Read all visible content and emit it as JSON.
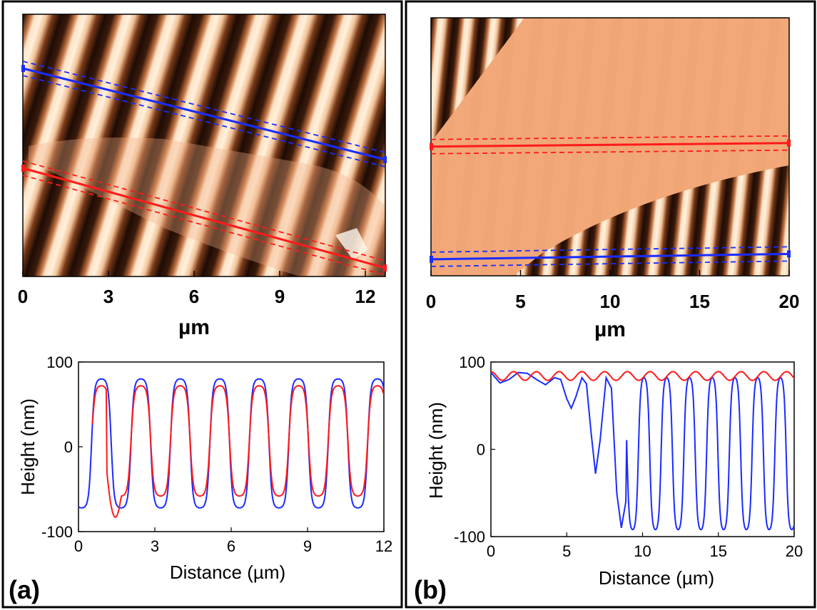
{
  "figure": {
    "panels": [
      {
        "label": "(a)"
      },
      {
        "label": "(b)"
      }
    ]
  },
  "colors": {
    "dark_band": "#2a1208",
    "bright_band": "#fde3c6",
    "flake": "#f2a878",
    "red_line": "#ff1a1a",
    "blue_line": "#1a2cff"
  },
  "chart_data": [
    {
      "type": "heatmap",
      "panel": "(a)",
      "xlabel": "µm",
      "xlim": [
        0,
        12.7
      ],
      "xticks": [
        "0",
        "3",
        "6",
        "9",
        "12"
      ],
      "tick_values": [
        0,
        3,
        6,
        9,
        12
      ],
      "profile_lines": [
        {
          "color": "blue",
          "from": [
            0,
            1.9
          ],
          "to": [
            12.7,
            5.1
          ]
        },
        {
          "color": "red",
          "from": [
            0,
            5.4
          ],
          "to": [
            12.7,
            8.9
          ]
        }
      ]
    },
    {
      "type": "line",
      "panel": "(a)",
      "xlabel": "Distance (µm)",
      "ylabel": "Height (nm)",
      "xlim": [
        0,
        12
      ],
      "ylim": [
        -100,
        100
      ],
      "xticks": [
        "0",
        "3",
        "6",
        "9",
        "12"
      ],
      "xtick_values": [
        0,
        3,
        6,
        9,
        12
      ],
      "yticks": [
        "100",
        "0",
        "-100"
      ],
      "ytick_values": [
        100,
        0,
        -100
      ],
      "series": [
        {
          "color": "blue",
          "model": {
            "period_um": 1.55,
            "first_peak_um": 0.9,
            "max_nm": 80,
            "min_nm": -72,
            "x_start": 0,
            "x_end": 12
          }
        },
        {
          "color": "red",
          "model": {
            "period_um": 1.55,
            "first_peak_um": 0.9,
            "max_nm": 72,
            "min_nm": -58,
            "x_start": 0.55,
            "x_end": 12,
            "dip_at_um": 1.45,
            "dip_nm": -83
          }
        }
      ]
    },
    {
      "type": "heatmap",
      "panel": "(b)",
      "xlabel": "µm",
      "xlim": [
        0,
        20
      ],
      "xticks": [
        "0",
        "5",
        "10",
        "15",
        "20"
      ],
      "tick_values": [
        0,
        5,
        10,
        15,
        20
      ],
      "profile_lines": [
        {
          "color": "red",
          "from": [
            0,
            7.2
          ],
          "to": [
            20,
            7.0
          ]
        },
        {
          "color": "blue",
          "from": [
            0,
            13.5
          ],
          "to": [
            20,
            13.2
          ]
        }
      ]
    },
    {
      "type": "line",
      "panel": "(b)",
      "xlabel": "Distance (µm)",
      "ylabel": "Height (nm)",
      "xlim": [
        0,
        20
      ],
      "ylim": [
        -100,
        100
      ],
      "xticks": [
        "0",
        "5",
        "10",
        "15",
        "20"
      ],
      "xtick_values": [
        0,
        5,
        10,
        15,
        20
      ],
      "yticks": [
        "100",
        "0",
        "-100"
      ],
      "ytick_values": [
        100,
        0,
        -100
      ],
      "series": [
        {
          "color": "red",
          "model": {
            "period_um": 1.5,
            "base_nm": 84,
            "amplitude_nm": 5
          }
        },
        {
          "color": "blue",
          "points": [
            [
              0,
              88
            ],
            [
              0.6,
              76
            ],
            [
              1.2,
              80
            ],
            [
              1.8,
              88
            ],
            [
              2.4,
              87
            ],
            [
              3.0,
              80
            ],
            [
              3.6,
              74
            ],
            [
              4.2,
              82
            ],
            [
              4.6,
              80
            ],
            [
              5.0,
              58
            ],
            [
              5.3,
              47
            ],
            [
              5.6,
              60
            ],
            [
              6.0,
              82
            ],
            [
              6.3,
              75
            ],
            [
              6.6,
              20
            ],
            [
              6.9,
              -28
            ],
            [
              7.2,
              10
            ],
            [
              7.6,
              82
            ],
            [
              7.95,
              70
            ],
            [
              8.3,
              -50
            ],
            [
              8.6,
              -90
            ],
            [
              8.9,
              -60
            ]
          ],
          "model_after": {
            "from_um": 8.9,
            "period_um": 1.5,
            "max_nm": 82,
            "min_nm": -92,
            "x_end": 20
          }
        }
      ]
    }
  ]
}
